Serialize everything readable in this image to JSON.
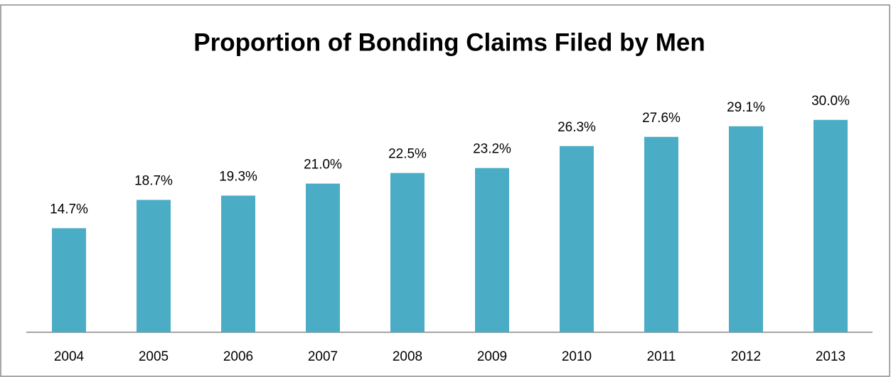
{
  "chart_data": {
    "type": "bar",
    "title": "Proportion of Bonding Claims Filed by Men",
    "categories": [
      "2004",
      "2005",
      "2006",
      "2007",
      "2008",
      "2009",
      "2010",
      "2011",
      "2012",
      "2013"
    ],
    "values": [
      14.7,
      18.7,
      19.3,
      21.0,
      22.5,
      23.2,
      26.3,
      27.6,
      29.1,
      30.0
    ],
    "value_labels": [
      "14.7%",
      "18.7%",
      "19.3%",
      "21.0%",
      "22.5%",
      "23.2%",
      "26.3%",
      "27.6%",
      "29.1%",
      "30.0%"
    ],
    "color": "#4bacc6",
    "ylim": [
      0,
      35
    ]
  }
}
